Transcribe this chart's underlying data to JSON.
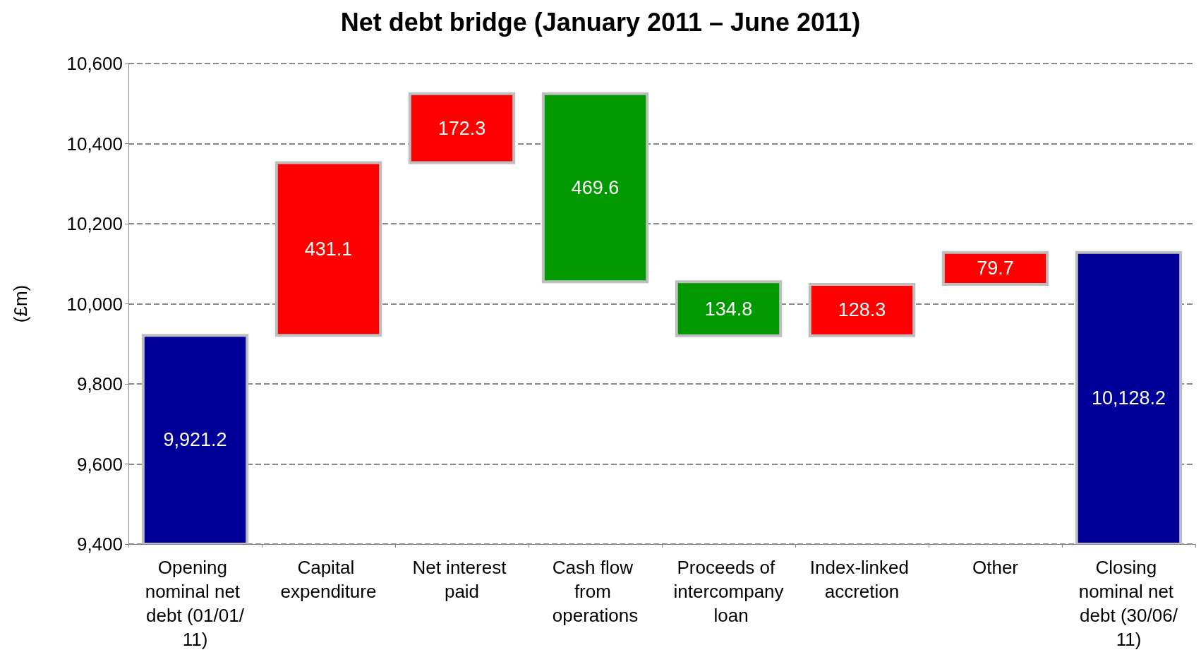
{
  "chart_data": {
    "type": "bar",
    "title": "Net debt bridge (January 2011 – June 2011)",
    "ylabel": "(£m)",
    "categories": [
      "Opening nominal net debt (01/01/11)",
      "Capital expenditure",
      "Net interest paid",
      "Cash flow from operations",
      "Proceeds of intercompany loan",
      "Index-linked accretion",
      "Other",
      "Closing nominal net debt (30/06/11)"
    ],
    "values": [
      9921.2,
      431.1,
      172.3,
      -469.6,
      -134.8,
      128.3,
      79.7,
      10128.2
    ],
    "base": [
      null,
      9921.2,
      10352.3,
      10524.6,
      10055.0,
      9920.2,
      10048.5,
      null
    ],
    "colors": [
      "#000099",
      "#ff0000",
      "#ff0000",
      "#009900",
      "#009900",
      "#ff0000",
      "#ff0000",
      "#000099"
    ],
    "value_labels": [
      "9,921.2",
      "431.1",
      "172.3",
      "469.6",
      "134.8",
      "128.3",
      "79.7",
      "10,128.2"
    ],
    "ylim": [
      9400,
      10600
    ],
    "yticks": [
      {
        "value": 9400,
        "label": "9,400"
      },
      {
        "value": 9600,
        "label": "9,600"
      },
      {
        "value": 9800,
        "label": "9,800"
      },
      {
        "value": 10000,
        "label": "10,000"
      },
      {
        "value": 10200,
        "label": "10,200"
      },
      {
        "value": 10400,
        "label": "10,400"
      },
      {
        "value": 10600,
        "label": "10,600"
      }
    ],
    "grid": "y"
  }
}
